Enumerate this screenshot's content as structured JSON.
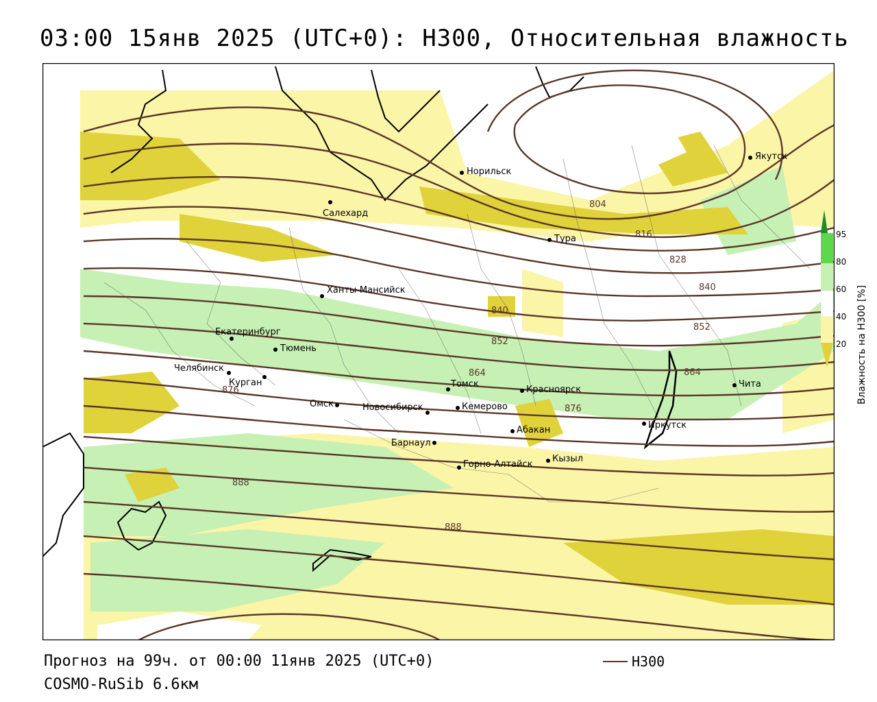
{
  "title": "03:00 15янв 2025 (UTC+0): H300, Относительная влажность",
  "footer": {
    "forecast": "Прогноз на 99ч. от 00:00 11янв 2025 (UTC+0)",
    "model": "COSMO-RuSib 6.6км",
    "legend_label": "H300"
  },
  "colorbar": {
    "label": "Влажность на H300 [%]",
    "ticks": [
      "95",
      "80",
      "60",
      "40",
      "20"
    ]
  },
  "contour_labels": [
    "804",
    "816",
    "828",
    "840",
    "840",
    "852",
    "852",
    "864",
    "864",
    "876",
    "876",
    "888",
    "888"
  ],
  "cities": [
    {
      "id": "norilsk",
      "name": "Норильск"
    },
    {
      "id": "yakutsk",
      "name": "Якутск"
    },
    {
      "id": "salekhard",
      "name": "Салехард"
    },
    {
      "id": "tura",
      "name": "Тура"
    },
    {
      "id": "khanty",
      "name": "Ханты-Мансийск"
    },
    {
      "id": "ekb",
      "name": "Екатеринбург"
    },
    {
      "id": "tyumen",
      "name": "Тюмень"
    },
    {
      "id": "chelyab",
      "name": "Челябинск"
    },
    {
      "id": "kurgan",
      "name": "Курган"
    },
    {
      "id": "omsk",
      "name": "Омск"
    },
    {
      "id": "novosib",
      "name": "Новосибирск"
    },
    {
      "id": "tomsk",
      "name": "Томск"
    },
    {
      "id": "kemerovo",
      "name": "Кемерово"
    },
    {
      "id": "krasnoyarsk",
      "name": "Красноярск"
    },
    {
      "id": "abakan",
      "name": "Абакан"
    },
    {
      "id": "barnaul",
      "name": "Барнаул"
    },
    {
      "id": "gorno",
      "name": "Горно-Алтайск"
    },
    {
      "id": "kyzyl",
      "name": "Кызыл"
    },
    {
      "id": "irkutsk",
      "name": "Иркутск"
    },
    {
      "id": "chita",
      "name": "Чита"
    }
  ],
  "colors": {
    "contour": "#5a3628",
    "hum_20_40": "#fbf5a8",
    "hum_low": "#e0d23a",
    "hum_60_80": "#c6f0b4",
    "hum_80_95": "#5cd84a",
    "hum_95": "#1f8a2a"
  }
}
